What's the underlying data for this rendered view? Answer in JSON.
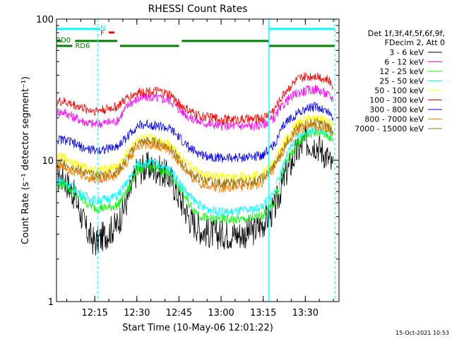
{
  "chart_data": {
    "type": "line",
    "title": "RHESSI Count Rates",
    "xlabel": "Start Time (10-May-06 12:01:22)",
    "ylabel": "Count Rate (s⁻¹ detector segment⁻¹)",
    "y_scale": "log",
    "ylim": [
      1,
      100
    ],
    "xlim": [
      "12:01:22",
      "13:42:00"
    ],
    "y_ticks": [
      "1",
      "10",
      "100"
    ],
    "x_ticks": [
      "12:15",
      "12:30",
      "12:45",
      "13:00",
      "13:15",
      "13:30"
    ],
    "legend_header": [
      "Det 1f,3f,4f,5f,6f,9f,",
      "FDecim 2, Att 0"
    ],
    "legend_position": "right",
    "series": [
      {
        "name": "3 - 6 keV",
        "color": "#000000",
        "x": [
          "12:04",
          "12:08",
          "12:12",
          "12:15",
          "12:19",
          "12:23",
          "12:27",
          "12:30",
          "12:34",
          "12:38",
          "12:42",
          "12:45",
          "12:49",
          "12:53",
          "12:57",
          "13:00",
          "13:04",
          "13:08",
          "13:12",
          "13:15",
          "13:19",
          "13:23",
          "13:27",
          "13:30",
          "13:34",
          "13:38",
          "13:40"
        ],
        "values": [
          7.5,
          5.5,
          3.2,
          2.6,
          3.0,
          3.5,
          5.5,
          8.5,
          9.0,
          8.5,
          7.5,
          5.5,
          3.8,
          3.2,
          3.0,
          3.0,
          3.0,
          3.0,
          3.2,
          3.6,
          4.5,
          8.0,
          11.5,
          13.5,
          13.0,
          10.5,
          8.5
        ]
      },
      {
        "name": "6 - 12 keV",
        "color": "#ff00ff",
        "x": [
          "12:04",
          "12:08",
          "12:12",
          "12:15",
          "12:19",
          "12:23",
          "12:27",
          "12:30",
          "12:34",
          "12:38",
          "12:42",
          "12:45",
          "12:49",
          "12:53",
          "12:57",
          "13:00",
          "13:04",
          "13:08",
          "13:12",
          "13:15",
          "13:19",
          "13:23",
          "13:27",
          "13:30",
          "13:34",
          "13:38",
          "13:40"
        ],
        "values": [
          22,
          20,
          18.5,
          18,
          18.5,
          19,
          25,
          27,
          28,
          27.5,
          26.5,
          23,
          20,
          18.5,
          18,
          17.5,
          17.5,
          17.5,
          17.5,
          18,
          20,
          26,
          30,
          31,
          32,
          29,
          27
        ]
      },
      {
        "name": "12 - 25 keV",
        "color": "#00ff00",
        "x": [
          "12:04",
          "12:08",
          "12:12",
          "12:15",
          "12:19",
          "12:23",
          "12:27",
          "12:30",
          "12:34",
          "12:38",
          "12:42",
          "12:45",
          "12:49",
          "12:53",
          "12:57",
          "13:00",
          "13:04",
          "13:08",
          "13:12",
          "13:15",
          "13:19",
          "13:23",
          "13:27",
          "13:30",
          "13:34",
          "13:38",
          "13:40"
        ],
        "values": [
          6.8,
          5.8,
          5.0,
          4.6,
          4.6,
          4.8,
          6.2,
          8.6,
          9.0,
          8.6,
          7.8,
          6.4,
          4.8,
          4.0,
          3.8,
          3.8,
          3.8,
          3.8,
          3.9,
          4.1,
          5.0,
          9.5,
          13.0,
          15.0,
          16.0,
          15.0,
          13.5
        ]
      },
      {
        "name": "25 - 50 keV",
        "color": "#00ffff",
        "x": [
          "12:04",
          "12:08",
          "12:12",
          "12:15",
          "12:19",
          "12:23",
          "12:27",
          "12:30",
          "12:34",
          "12:38",
          "12:42",
          "12:45",
          "12:49",
          "12:53",
          "12:57",
          "13:00",
          "13:04",
          "13:08",
          "13:12",
          "13:15",
          "13:19",
          "13:23",
          "13:27",
          "13:30",
          "13:34",
          "13:38",
          "13:40"
        ],
        "values": [
          7.2,
          6.2,
          5.5,
          5.2,
          5.3,
          5.6,
          7.2,
          9.4,
          9.7,
          9.3,
          8.5,
          7.0,
          5.5,
          4.7,
          4.4,
          4.3,
          4.3,
          4.4,
          4.5,
          4.8,
          6.0,
          10.5,
          14.5,
          16.0,
          17.0,
          16.0,
          15.0
        ]
      },
      {
        "name": "50 - 100 keV",
        "color": "#ffff00",
        "x": [
          "12:04",
          "12:08",
          "12:12",
          "12:15",
          "12:19",
          "12:23",
          "12:27",
          "12:30",
          "12:34",
          "12:38",
          "12:42",
          "12:45",
          "12:49",
          "12:53",
          "12:57",
          "13:00",
          "13:04",
          "13:08",
          "13:12",
          "13:15",
          "13:19",
          "13:23",
          "13:27",
          "13:30",
          "13:34",
          "13:38",
          "13:40"
        ],
        "values": [
          10.5,
          9.5,
          8.8,
          8.5,
          8.7,
          9.0,
          11.5,
          14.0,
          14.5,
          14.0,
          13.0,
          11.0,
          9.0,
          8.0,
          7.7,
          7.6,
          7.6,
          7.7,
          7.8,
          8.2,
          9.8,
          14.0,
          18.0,
          19.5,
          20.0,
          19.0,
          18.0
        ]
      },
      {
        "name": "100 - 300 keV",
        "color": "#ff0000",
        "x": [
          "12:04",
          "12:08",
          "12:12",
          "12:15",
          "12:19",
          "12:23",
          "12:27",
          "12:30",
          "12:34",
          "12:38",
          "12:42",
          "12:45",
          "12:49",
          "12:53",
          "12:57",
          "13:00",
          "13:04",
          "13:08",
          "13:12",
          "13:15",
          "13:19",
          "13:23",
          "13:27",
          "13:30",
          "13:34",
          "13:38",
          "13:40"
        ],
        "values": [
          26,
          24.5,
          23,
          22.5,
          23,
          24,
          28,
          30,
          31,
          30.5,
          29,
          25,
          22,
          20.5,
          20,
          19.5,
          19.5,
          19.5,
          19.5,
          20,
          23,
          31,
          37,
          39,
          40,
          37,
          34
        ]
      },
      {
        "name": "300 - 800 keV",
        "color": "#0000ff",
        "x": [
          "12:04",
          "12:08",
          "12:12",
          "12:15",
          "12:19",
          "12:23",
          "12:27",
          "12:30",
          "12:34",
          "12:38",
          "12:42",
          "12:45",
          "12:49",
          "12:53",
          "12:57",
          "13:00",
          "13:04",
          "13:08",
          "13:12",
          "13:15",
          "13:19",
          "13:23",
          "13:27",
          "13:30",
          "13:34",
          "13:38",
          "13:40"
        ],
        "values": [
          14.0,
          13.0,
          12.0,
          11.8,
          12.0,
          12.5,
          15.0,
          17.5,
          18.0,
          17.5,
          16.5,
          14.5,
          12.0,
          11.0,
          10.6,
          10.4,
          10.4,
          10.5,
          10.6,
          11.0,
          13.0,
          18.5,
          21.5,
          23.0,
          24.0,
          22.0,
          20.0
        ]
      },
      {
        "name": "800 - 7000 keV",
        "color": "#ff8000",
        "x": [
          "12:04",
          "12:08",
          "12:12",
          "12:15",
          "12:19",
          "12:23",
          "12:27",
          "12:30",
          "12:34",
          "12:38",
          "12:42",
          "12:45",
          "12:49",
          "12:53",
          "12:57",
          "13:00",
          "13:04",
          "13:08",
          "13:12",
          "13:15",
          "13:19",
          "13:23",
          "13:27",
          "13:30",
          "13:34",
          "13:38",
          "13:40"
        ],
        "values": [
          9.0,
          8.3,
          7.6,
          7.3,
          7.5,
          7.8,
          10.0,
          12.5,
          13.0,
          12.6,
          11.6,
          9.5,
          7.6,
          6.8,
          6.5,
          6.4,
          6.4,
          6.5,
          6.6,
          7.0,
          8.6,
          12.5,
          16.0,
          17.0,
          17.5,
          16.5,
          15.5
        ]
      },
      {
        "name": "7000 - 15000 keV",
        "color": "#a07000",
        "x": [
          "12:04",
          "12:08",
          "12:12",
          "12:15",
          "12:19",
          "12:23",
          "12:27",
          "12:30",
          "12:34",
          "12:38",
          "12:42",
          "12:45",
          "12:49",
          "12:53",
          "12:57",
          "13:00",
          "13:04",
          "13:08",
          "13:12",
          "13:15",
          "13:19",
          "13:23",
          "13:27",
          "13:30",
          "13:34",
          "13:38",
          "13:40"
        ],
        "values": [
          9.6,
          8.8,
          8.1,
          7.8,
          8.0,
          8.3,
          10.6,
          13.2,
          13.7,
          13.2,
          12.2,
          10.1,
          8.1,
          7.3,
          7.0,
          6.9,
          6.9,
          7.0,
          7.1,
          7.5,
          9.2,
          13.2,
          16.8,
          18.0,
          18.5,
          17.5,
          16.5
        ]
      }
    ],
    "annotations": [
      {
        "text": "N",
        "color": "#00ffff",
        "x": "12:16"
      },
      {
        "text": "F",
        "color": "#ff0000",
        "x": "12:19"
      },
      {
        "text": "RD0",
        "color": "#008000",
        "x": "12:01"
      },
      {
        "text": "RD6",
        "color": "#008000",
        "x": "12:08"
      }
    ],
    "state_bars": {
      "night": {
        "color": "#00ffff",
        "intervals": [
          [
            "12:01:22",
            "12:17"
          ],
          [
            "13:17",
            "13:40:30"
          ]
        ]
      },
      "flare": {
        "color": "#ff0000",
        "intervals": [
          [
            "12:20",
            "12:22"
          ]
        ]
      },
      "rd_upper": {
        "color": "#008000",
        "intervals": [
          [
            "12:01:22",
            "12:03"
          ],
          [
            "12:08",
            "12:23"
          ],
          [
            "12:46",
            "13:17"
          ]
        ]
      },
      "rd_lower": {
        "color": "#008000",
        "intervals": [
          [
            "12:01:22",
            "12:07"
          ],
          [
            "12:24",
            "12:45"
          ],
          [
            "13:17",
            "13:40:30"
          ]
        ]
      }
    },
    "vlines_solid": {
      "color": "#00ffff",
      "x": [
        "12:01:22",
        "13:17"
      ]
    },
    "vlines_dashed": {
      "color": "#00ffff",
      "x": [
        "12:16",
        "13:40:30"
      ]
    }
  },
  "footer": {
    "timestamp": "15-Oct-2021 10:53"
  }
}
